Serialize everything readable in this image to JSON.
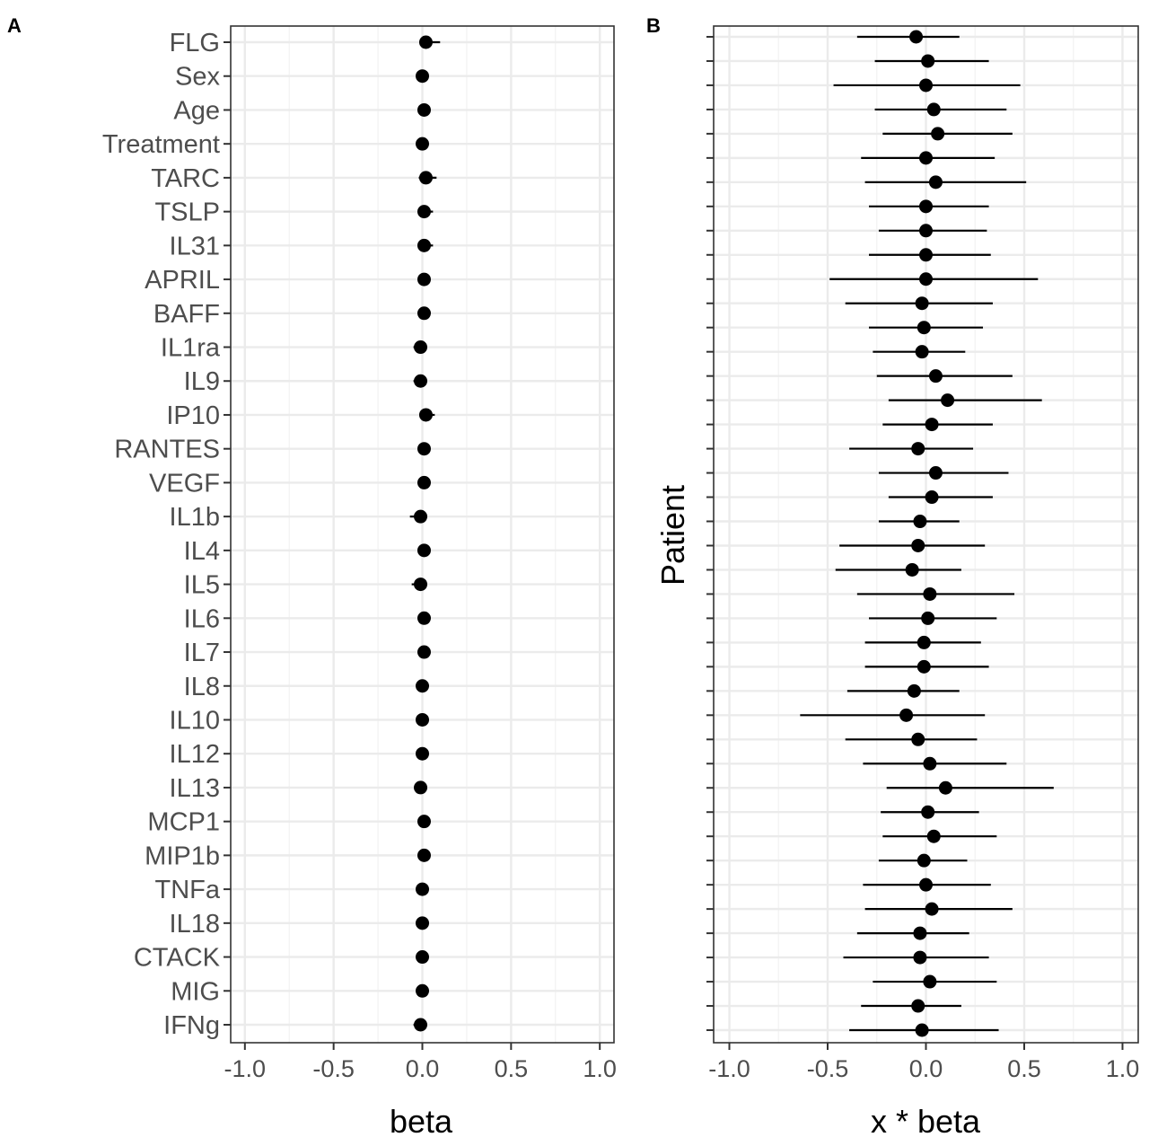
{
  "chart_data": [
    {
      "panel": "A",
      "type": "scatter",
      "xlabel": "beta",
      "ylabel": "",
      "xlim": [
        -1.08,
        1.08
      ],
      "xticks": [
        -1.0,
        -0.5,
        0.0,
        0.5,
        1.0
      ],
      "xtick_labels": [
        "-1.0",
        "-0.5",
        "0.0",
        "0.5",
        "1.0"
      ],
      "grid": true,
      "categories": [
        "FLG",
        "Sex",
        "Age",
        "Treatment",
        "TARC",
        "TSLP",
        "IL31",
        "APRIL",
        "BAFF",
        "IL1ra",
        "IL9",
        "IP10",
        "RANTES",
        "VEGF",
        "IL1b",
        "IL4",
        "IL5",
        "IL6",
        "IL7",
        "IL8",
        "IL10",
        "IL12",
        "IL13",
        "MCP1",
        "MIP1b",
        "TNFa",
        "IL18",
        "CTACK",
        "MIG",
        "IFNg"
      ],
      "points": [
        {
          "label": "FLG",
          "est": 0.02,
          "lo": -0.01,
          "hi": 0.1
        },
        {
          "label": "Sex",
          "est": 0.0,
          "lo": -0.01,
          "hi": 0.01
        },
        {
          "label": "Age",
          "est": 0.01,
          "lo": 0.0,
          "hi": 0.02
        },
        {
          "label": "Treatment",
          "est": 0.0,
          "lo": -0.02,
          "hi": 0.02
        },
        {
          "label": "TARC",
          "est": 0.02,
          "lo": -0.02,
          "hi": 0.08
        },
        {
          "label": "TSLP",
          "est": 0.01,
          "lo": -0.02,
          "hi": 0.06
        },
        {
          "label": "IL31",
          "est": 0.01,
          "lo": -0.02,
          "hi": 0.06
        },
        {
          "label": "APRIL",
          "est": 0.01,
          "lo": -0.01,
          "hi": 0.03
        },
        {
          "label": "BAFF",
          "est": 0.01,
          "lo": -0.01,
          "hi": 0.03
        },
        {
          "label": "IL1ra",
          "est": -0.01,
          "lo": -0.05,
          "hi": 0.02
        },
        {
          "label": "IL9",
          "est": -0.01,
          "lo": -0.05,
          "hi": 0.02
        },
        {
          "label": "IP10",
          "est": 0.02,
          "lo": -0.01,
          "hi": 0.07
        },
        {
          "label": "RANTES",
          "est": 0.01,
          "lo": -0.01,
          "hi": 0.03
        },
        {
          "label": "VEGF",
          "est": 0.01,
          "lo": -0.01,
          "hi": 0.04
        },
        {
          "label": "IL1b",
          "est": -0.01,
          "lo": -0.07,
          "hi": 0.01
        },
        {
          "label": "IL4",
          "est": 0.01,
          "lo": -0.01,
          "hi": 0.02
        },
        {
          "label": "IL5",
          "est": -0.01,
          "lo": -0.06,
          "hi": 0.01
        },
        {
          "label": "IL6",
          "est": 0.01,
          "lo": -0.01,
          "hi": 0.02
        },
        {
          "label": "IL7",
          "est": 0.01,
          "lo": -0.01,
          "hi": 0.02
        },
        {
          "label": "IL8",
          "est": 0.0,
          "lo": -0.01,
          "hi": 0.02
        },
        {
          "label": "IL10",
          "est": 0.0,
          "lo": -0.01,
          "hi": 0.02
        },
        {
          "label": "IL12",
          "est": 0.0,
          "lo": -0.01,
          "hi": 0.02
        },
        {
          "label": "IL13",
          "est": -0.01,
          "lo": -0.04,
          "hi": 0.01
        },
        {
          "label": "MCP1",
          "est": 0.01,
          "lo": -0.01,
          "hi": 0.02
        },
        {
          "label": "MIP1b",
          "est": 0.01,
          "lo": -0.01,
          "hi": 0.02
        },
        {
          "label": "TNFa",
          "est": 0.0,
          "lo": -0.01,
          "hi": 0.02
        },
        {
          "label": "IL18",
          "est": 0.0,
          "lo": -0.01,
          "hi": 0.02
        },
        {
          "label": "CTACK",
          "est": 0.0,
          "lo": -0.01,
          "hi": 0.02
        },
        {
          "label": "MIG",
          "est": 0.0,
          "lo": -0.01,
          "hi": 0.02
        },
        {
          "label": "IFNg",
          "est": -0.01,
          "lo": -0.05,
          "hi": 0.01
        }
      ]
    },
    {
      "panel": "B",
      "type": "scatter",
      "xlabel": "x * beta",
      "ylabel": "Patient",
      "xlim": [
        -1.08,
        1.08
      ],
      "xticks": [
        -1.0,
        -0.5,
        0.0,
        0.5,
        1.0
      ],
      "xtick_labels": [
        "-1.0",
        "-0.5",
        "0.0",
        "0.5",
        "1.0"
      ],
      "grid": true,
      "points": [
        {
          "est": -0.05,
          "lo": -0.35,
          "hi": 0.17
        },
        {
          "est": 0.01,
          "lo": -0.26,
          "hi": 0.32
        },
        {
          "est": 0.0,
          "lo": -0.47,
          "hi": 0.48
        },
        {
          "est": 0.04,
          "lo": -0.26,
          "hi": 0.41
        },
        {
          "est": 0.06,
          "lo": -0.22,
          "hi": 0.44
        },
        {
          "est": 0.0,
          "lo": -0.33,
          "hi": 0.35
        },
        {
          "est": 0.05,
          "lo": -0.31,
          "hi": 0.51
        },
        {
          "est": 0.0,
          "lo": -0.29,
          "hi": 0.32
        },
        {
          "est": 0.0,
          "lo": -0.24,
          "hi": 0.31
        },
        {
          "est": 0.0,
          "lo": -0.29,
          "hi": 0.33
        },
        {
          "est": 0.0,
          "lo": -0.49,
          "hi": 0.57
        },
        {
          "est": -0.02,
          "lo": -0.41,
          "hi": 0.34
        },
        {
          "est": -0.01,
          "lo": -0.29,
          "hi": 0.29
        },
        {
          "est": -0.02,
          "lo": -0.27,
          "hi": 0.2
        },
        {
          "est": 0.05,
          "lo": -0.25,
          "hi": 0.44
        },
        {
          "est": 0.11,
          "lo": -0.19,
          "hi": 0.59
        },
        {
          "est": 0.03,
          "lo": -0.22,
          "hi": 0.34
        },
        {
          "est": -0.04,
          "lo": -0.39,
          "hi": 0.24
        },
        {
          "est": 0.05,
          "lo": -0.24,
          "hi": 0.42
        },
        {
          "est": 0.03,
          "lo": -0.19,
          "hi": 0.34
        },
        {
          "est": -0.03,
          "lo": -0.24,
          "hi": 0.17
        },
        {
          "est": -0.04,
          "lo": -0.44,
          "hi": 0.3
        },
        {
          "est": -0.07,
          "lo": -0.46,
          "hi": 0.18
        },
        {
          "est": 0.02,
          "lo": -0.35,
          "hi": 0.45
        },
        {
          "est": 0.01,
          "lo": -0.29,
          "hi": 0.36
        },
        {
          "est": -0.01,
          "lo": -0.31,
          "hi": 0.28
        },
        {
          "est": -0.01,
          "lo": -0.31,
          "hi": 0.32
        },
        {
          "est": -0.06,
          "lo": -0.4,
          "hi": 0.17
        },
        {
          "est": -0.1,
          "lo": -0.64,
          "hi": 0.3
        },
        {
          "est": -0.04,
          "lo": -0.41,
          "hi": 0.26
        },
        {
          "est": 0.02,
          "lo": -0.32,
          "hi": 0.41
        },
        {
          "est": 0.1,
          "lo": -0.2,
          "hi": 0.65
        },
        {
          "est": 0.01,
          "lo": -0.23,
          "hi": 0.27
        },
        {
          "est": 0.04,
          "lo": -0.22,
          "hi": 0.36
        },
        {
          "est": -0.01,
          "lo": -0.24,
          "hi": 0.21
        },
        {
          "est": 0.0,
          "lo": -0.32,
          "hi": 0.33
        },
        {
          "est": 0.03,
          "lo": -0.31,
          "hi": 0.44
        },
        {
          "est": -0.03,
          "lo": -0.35,
          "hi": 0.22
        },
        {
          "est": -0.03,
          "lo": -0.42,
          "hi": 0.32
        },
        {
          "est": 0.02,
          "lo": -0.27,
          "hi": 0.36
        },
        {
          "est": -0.04,
          "lo": -0.33,
          "hi": 0.18
        },
        {
          "est": -0.02,
          "lo": -0.39,
          "hi": 0.37
        }
      ]
    }
  ]
}
